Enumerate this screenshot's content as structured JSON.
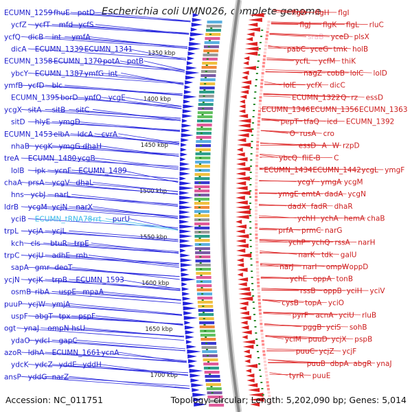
{
  "map": {
    "title": "Escherichia coli UMN026, complete genome",
    "accession_label": "Accession: NC_011751",
    "topology_label": "Topology: circular; Length: 5,202,090 bp; Genes: 5,014",
    "colors": {
      "forward": "#2222dd",
      "reverse": "#dd2222",
      "backbone": "#888888",
      "tick": "#2a8a2a",
      "highlight": "#36b8e8"
    },
    "kbp_ticks": [
      "1350 kbp",
      "1400 kbp",
      "1450 kbp",
      "1500 kbp",
      "1550 kbp",
      "1600 kbp",
      "1650 kbp",
      "1700 kbp"
    ],
    "left_labels": [
      "ECUMN_1259",
      "fhuE",
      "potD",
      "ycfZ",
      "ycfT",
      "mfd",
      "ycfS",
      "ycfQ",
      "dicB",
      "int",
      "ymfA",
      "dicA",
      "ECUMN_1339",
      "ECUMN_1341",
      "ECUMN_1358",
      "ECUMN_1370",
      "potA",
      "potB",
      "ybcY",
      "ECUMN_1387",
      "ymfG",
      "int",
      "ymfB",
      "ycfD",
      "blc",
      "ECUMN_1395",
      "borD",
      "ynfO",
      "ycgE",
      "ycgX",
      "sitA",
      "sitB",
      "sitC",
      "sitD",
      "hlyE",
      "ymgD",
      "ECUMN_1453",
      "elbA",
      "ldcA",
      "cvrA",
      "nhaB",
      "ycgK",
      "ymgG",
      "dhaH",
      "treA",
      "ECUMN_1480",
      "ycgB",
      "lolB",
      "ipk",
      "ycnF",
      "ECUMN_1489",
      "chaA",
      "prsA",
      "ycgV",
      "dhaL",
      "hns",
      "ycbJ",
      "narL",
      "ldrB",
      "ycgM",
      "ycjN",
      "narX",
      "yciB",
      "ECUMN_tRNA78",
      "rrt",
      "purU",
      "trpL",
      "ycjA",
      "ycjL",
      "kch",
      "cls",
      "btuR",
      "trpE",
      "trpC",
      "ycjU",
      "adhE",
      "rnb",
      "sapA",
      "gmr",
      "deoT",
      "ycjN",
      "ycjK",
      "trpB",
      "ECUMN_1593",
      "osmB",
      "ribA",
      "uspE",
      "mpaA",
      "puuP",
      "ycjW",
      "ymjA",
      "uspF",
      "abgT",
      "tpx",
      "pspF",
      "ogt",
      "ynaJ",
      "ompN",
      "hsU",
      "ydaO",
      "ydcI",
      "gapC",
      "azoR",
      "ldhA",
      "ECUMN_1661",
      "ycnA",
      "ydcK",
      "ydcZ",
      "yddE",
      "yddH",
      "ansP",
      "yddG",
      "narZ"
    ],
    "right_labels": [
      "flgD",
      "flgH",
      "flgI",
      "flgJ",
      "flgK",
      "flgL",
      "rluC",
      "sraB",
      "yceD",
      "plsX",
      "pabC",
      "yceG",
      "tmk",
      "holB",
      "ycfL",
      "ycfM",
      "thiK",
      "nagZ",
      "cobB",
      "lolC",
      "lolD",
      "lolE",
      "ycfX",
      "dicC",
      "ECUMN_1322",
      "Q",
      "rz",
      "essD",
      "ECUMN_1346",
      "ECUMN_1356",
      "ECUMN_1363",
      "pepT",
      "tfaQ",
      "icd",
      "ECUMN_1392",
      "O",
      "rusA",
      "cro",
      "essD",
      "A",
      "W",
      "rzpD",
      "ybcQ",
      "fliE-B",
      "C",
      "ECUMN_1434",
      "ECUMN_1442",
      "ycgL",
      "ymgF",
      "ycgY",
      "ymgA",
      "ycgM",
      "ymgE",
      "emtA",
      "dadA",
      "ycgN",
      "dadX",
      "fadR",
      "dhaR",
      "ychH",
      "ychA",
      "hemA",
      "chaB",
      "prfA",
      "prmC",
      "narG",
      "ychP",
      "ychQ",
      "rssA",
      "narH",
      "narK",
      "tdk",
      "galU",
      "narJ",
      "narI",
      "ompW",
      "oppD",
      "ychE",
      "oppA",
      "tonB",
      "rssB",
      "oppB",
      "yciH",
      "yciV",
      "cysB",
      "topA",
      "yciO",
      "pyrF",
      "acnA",
      "yciU",
      "rluB",
      "pggB",
      "yciS",
      "sohB",
      "yciM",
      "puuD",
      "ycjX",
      "pspB",
      "puuC",
      "ycjZ",
      "ycjF",
      "puuB",
      "dbpA",
      "abgR",
      "ynaJ",
      "tyrR",
      "puuE"
    ]
  }
}
